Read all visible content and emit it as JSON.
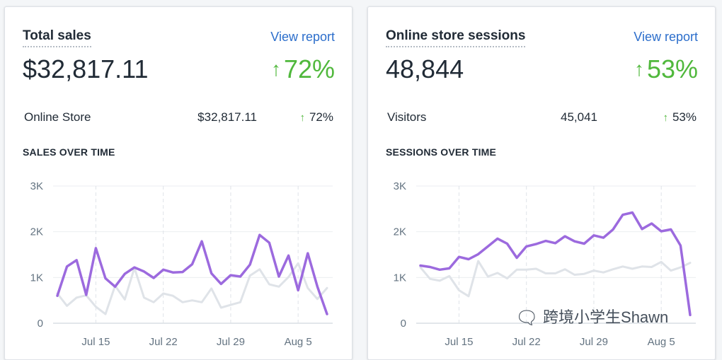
{
  "colors": {
    "current": "#9c6ade",
    "previous": "#dfe3e8",
    "positive": "#50b83c",
    "link": "#2c6ecb"
  },
  "sales": {
    "title": "Total sales",
    "view_report": "View report",
    "value": "$32,817.11",
    "change": "72%",
    "row": {
      "label": "Online Store",
      "value": "$32,817.11",
      "change": "72%"
    },
    "section_title": "SALES OVER TIME"
  },
  "sessions": {
    "title": "Online store sessions",
    "view_report": "View report",
    "value": "48,844",
    "change": "53%",
    "row": {
      "label": "Visitors",
      "value": "45,041",
      "change": "53%"
    },
    "section_title": "SESSIONS OVER TIME"
  },
  "watermark": {
    "text": "跨境小学生Shawn",
    "icon": "wechat-icon"
  },
  "chart_data": [
    {
      "type": "line",
      "title": "SALES OVER TIME",
      "ylim": [
        0,
        3000
      ],
      "yticks": [
        "3K",
        "2K",
        "1K",
        "0"
      ],
      "xticks": [
        "Jul 15",
        "Jul 22",
        "Jul 29",
        "Aug 5"
      ],
      "xtick_days": [
        4,
        11,
        18,
        25
      ],
      "series": [
        {
          "name": "current",
          "values": [
            600,
            1240,
            1380,
            620,
            1640,
            980,
            800,
            1080,
            1220,
            1130,
            990,
            1170,
            1110,
            1120,
            1290,
            1790,
            1090,
            860,
            1050,
            1020,
            1280,
            1930,
            1760,
            1020,
            1480,
            720,
            1530,
            800,
            200
          ]
        },
        {
          "name": "previous",
          "values": [
            650,
            380,
            560,
            610,
            360,
            200,
            820,
            520,
            1210,
            560,
            460,
            650,
            600,
            460,
            500,
            460,
            760,
            340,
            400,
            460,
            1040,
            1180,
            850,
            800,
            1010,
            1310,
            770,
            530,
            770
          ]
        }
      ]
    },
    {
      "type": "line",
      "title": "SESSIONS OVER TIME",
      "ylim": [
        0,
        3000
      ],
      "yticks": [
        "3K",
        "2K",
        "1K",
        "0"
      ],
      "xticks": [
        "Jul 15",
        "Jul 22",
        "Jul 29",
        "Aug 5"
      ],
      "xtick_days": [
        4,
        11,
        18,
        25
      ],
      "series": [
        {
          "name": "current",
          "values": [
            1260,
            1230,
            1170,
            1200,
            1450,
            1400,
            1510,
            1680,
            1850,
            1740,
            1430,
            1680,
            1730,
            1800,
            1750,
            1900,
            1790,
            1740,
            1920,
            1870,
            2050,
            2370,
            2420,
            2060,
            2180,
            2010,
            2050,
            1700,
            180
          ]
        },
        {
          "name": "previous",
          "values": [
            1220,
            970,
            930,
            1030,
            720,
            590,
            1360,
            1020,
            1100,
            980,
            1170,
            1170,
            1190,
            1090,
            1090,
            1180,
            1060,
            1080,
            1150,
            1110,
            1180,
            1240,
            1190,
            1240,
            1230,
            1340,
            1150,
            1220,
            1320
          ]
        }
      ]
    }
  ]
}
